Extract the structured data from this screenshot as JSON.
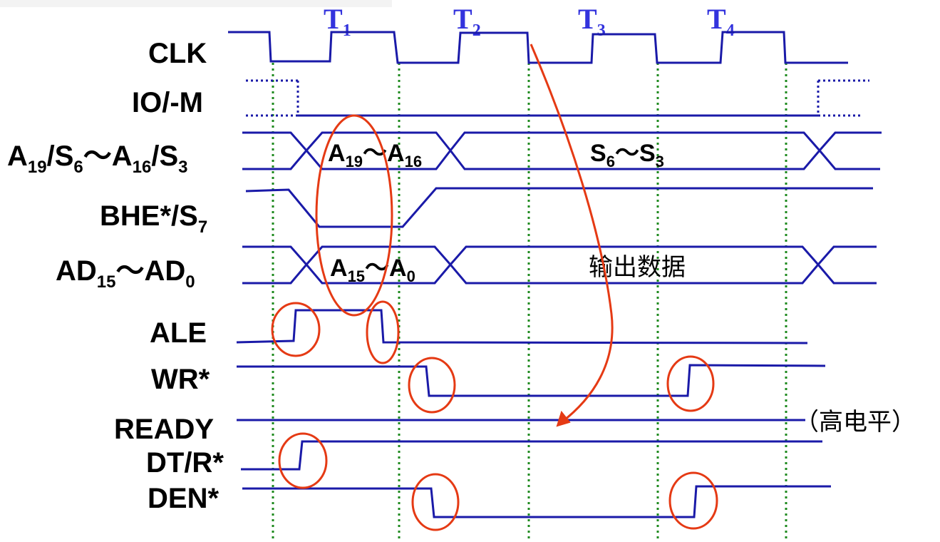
{
  "cycle_labels": [
    {
      "main": "T",
      "sub": "1"
    },
    {
      "main": "T",
      "sub": "2"
    },
    {
      "main": "T",
      "sub": "3"
    },
    {
      "main": "T",
      "sub": "4"
    }
  ],
  "signals": {
    "clk": "CLK",
    "io_m": "IO/-M",
    "addr_status": {
      "a": "A",
      "a_sub": "19",
      "s": "/S",
      "s_sub": "6",
      "tilde": "～",
      "b": "A",
      "b_sub": "16",
      "s2": "/S",
      "s2_sub": "3"
    },
    "bhe": {
      "main": "BHE*/S",
      "sub": "7"
    },
    "ad": {
      "a": "AD",
      "a_sub": "15",
      "tilde": "～",
      "b": "AD",
      "b_sub": "0"
    },
    "ale": "ALE",
    "wr": "WR*",
    "ready": "READY",
    "dtr": "DT/R*",
    "den": "DEN*"
  },
  "bus_values": {
    "address_high": {
      "a": "A",
      "a_sub": "19",
      "tilde": "～",
      "b": "A",
      "b_sub": "16"
    },
    "status": {
      "a": "S",
      "a_sub": "6",
      "tilde": "～",
      "b": "S",
      "b_sub": "3"
    },
    "address_low": {
      "a": "A",
      "a_sub": "15",
      "tilde": "～",
      "b": "A",
      "b_sub": "0"
    },
    "data_out": "输出数据"
  },
  "notes": {
    "ready_level": "（高电平）"
  },
  "colors": {
    "waveform": "#1a1aa8",
    "cycle_label": "#3333dd",
    "grid": "#1e8a1e",
    "highlight": "#e53a14"
  }
}
